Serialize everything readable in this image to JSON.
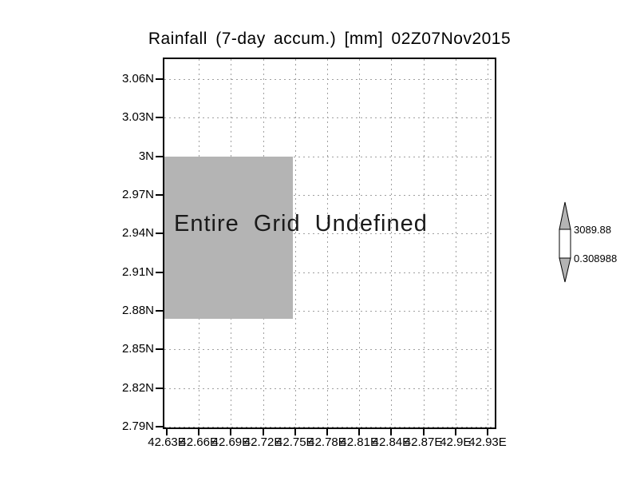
{
  "title": "Rainfall (7-day accum.) [mm] 02Z07Nov2015",
  "plot": {
    "annotation": "Entire Grid Undefined"
  },
  "yaxis": {
    "labels": [
      "3.06N",
      "3.03N",
      "3N",
      "2.97N",
      "2.94N",
      "2.91N",
      "2.88N",
      "2.85N",
      "2.82N",
      "2.79N"
    ]
  },
  "xaxis": {
    "labels": [
      "42.63E",
      "42.66E",
      "42.69E",
      "42.72E",
      "42.75E",
      "42.78E",
      "42.81E",
      "42.84E",
      "42.87E",
      "42.9E",
      "42.93E"
    ]
  },
  "colorbar": {
    "max_label": "3089.88",
    "min_label": "0.308988"
  },
  "colors": {
    "undefined_fill": "#b4b4b4",
    "grid": "#a0a0a0",
    "frame": "#000000"
  },
  "chart_data": {
    "type": "heatmap",
    "title": "Rainfall (7-day accum.) [mm] 02Z07Nov2015",
    "xlabel": "",
    "ylabel": "",
    "x_tick_labels": [
      "42.63E",
      "42.66E",
      "42.69E",
      "42.72E",
      "42.75E",
      "42.78E",
      "42.81E",
      "42.84E",
      "42.87E",
      "42.9E",
      "42.93E"
    ],
    "y_tick_labels": [
      "3.06N",
      "3.03N",
      "3N",
      "2.97N",
      "2.94N",
      "2.91N",
      "2.88N",
      "2.85N",
      "2.82N",
      "2.79N"
    ],
    "grid": true,
    "legend_position": "right",
    "values_status": "entire grid undefined (no data values rendered)",
    "annotation": "Entire Grid Undefined",
    "colorbar_labels": [
      "3089.88",
      "0.308988"
    ],
    "undefined_mask_region_approx": {
      "lon_from_left_edge_to": "42.75E",
      "lat_top": "3N",
      "lat_bottom": "just below 2.88N"
    }
  }
}
